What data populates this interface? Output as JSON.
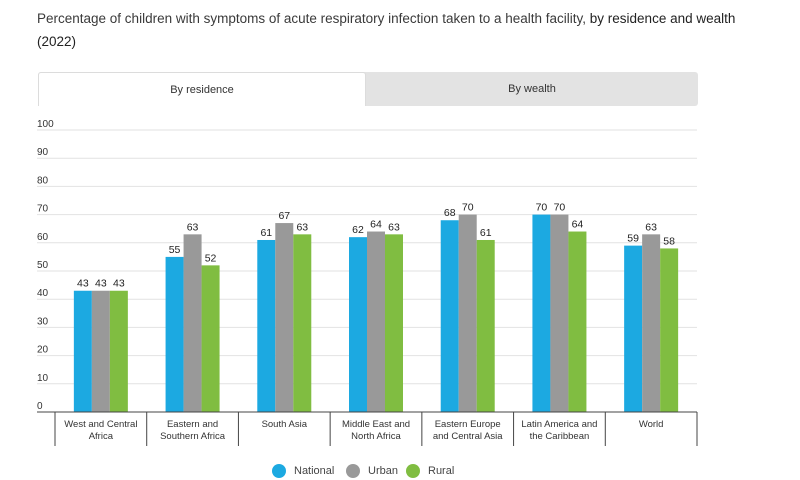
{
  "title": {
    "text": "Percentage of children with symptoms of acute respiratory infection taken to a health facility, ",
    "bold_text": "by residence and wealth (2022)"
  },
  "tabs": [
    {
      "label": "By residence",
      "active": true
    },
    {
      "label": "By wealth",
      "active": false
    }
  ],
  "chart_data": {
    "type": "bar",
    "categories": [
      [
        "West and Central",
        "Africa"
      ],
      [
        "Eastern and",
        "Southern Africa"
      ],
      [
        "South Asia"
      ],
      [
        "Middle East and",
        "North Africa"
      ],
      [
        "Eastern Europe",
        "and Central Asia"
      ],
      [
        "Latin America and",
        "the Caribbean"
      ],
      [
        "World"
      ]
    ],
    "series": [
      {
        "name": "National",
        "color": "#1ca9e1",
        "values": [
          43,
          55,
          61,
          62,
          68,
          70,
          59
        ]
      },
      {
        "name": "Urban",
        "color": "#999999",
        "values": [
          43,
          63,
          67,
          64,
          70,
          70,
          63
        ]
      },
      {
        "name": "Rural",
        "color": "#80bd41",
        "values": [
          43,
          52,
          63,
          63,
          61,
          64,
          58
        ]
      }
    ],
    "ylim": [
      0,
      100
    ],
    "yticks": [
      0,
      10,
      20,
      30,
      40,
      50,
      60,
      70,
      80,
      90,
      100
    ],
    "grid": true,
    "legend_position": "bottom-center"
  }
}
